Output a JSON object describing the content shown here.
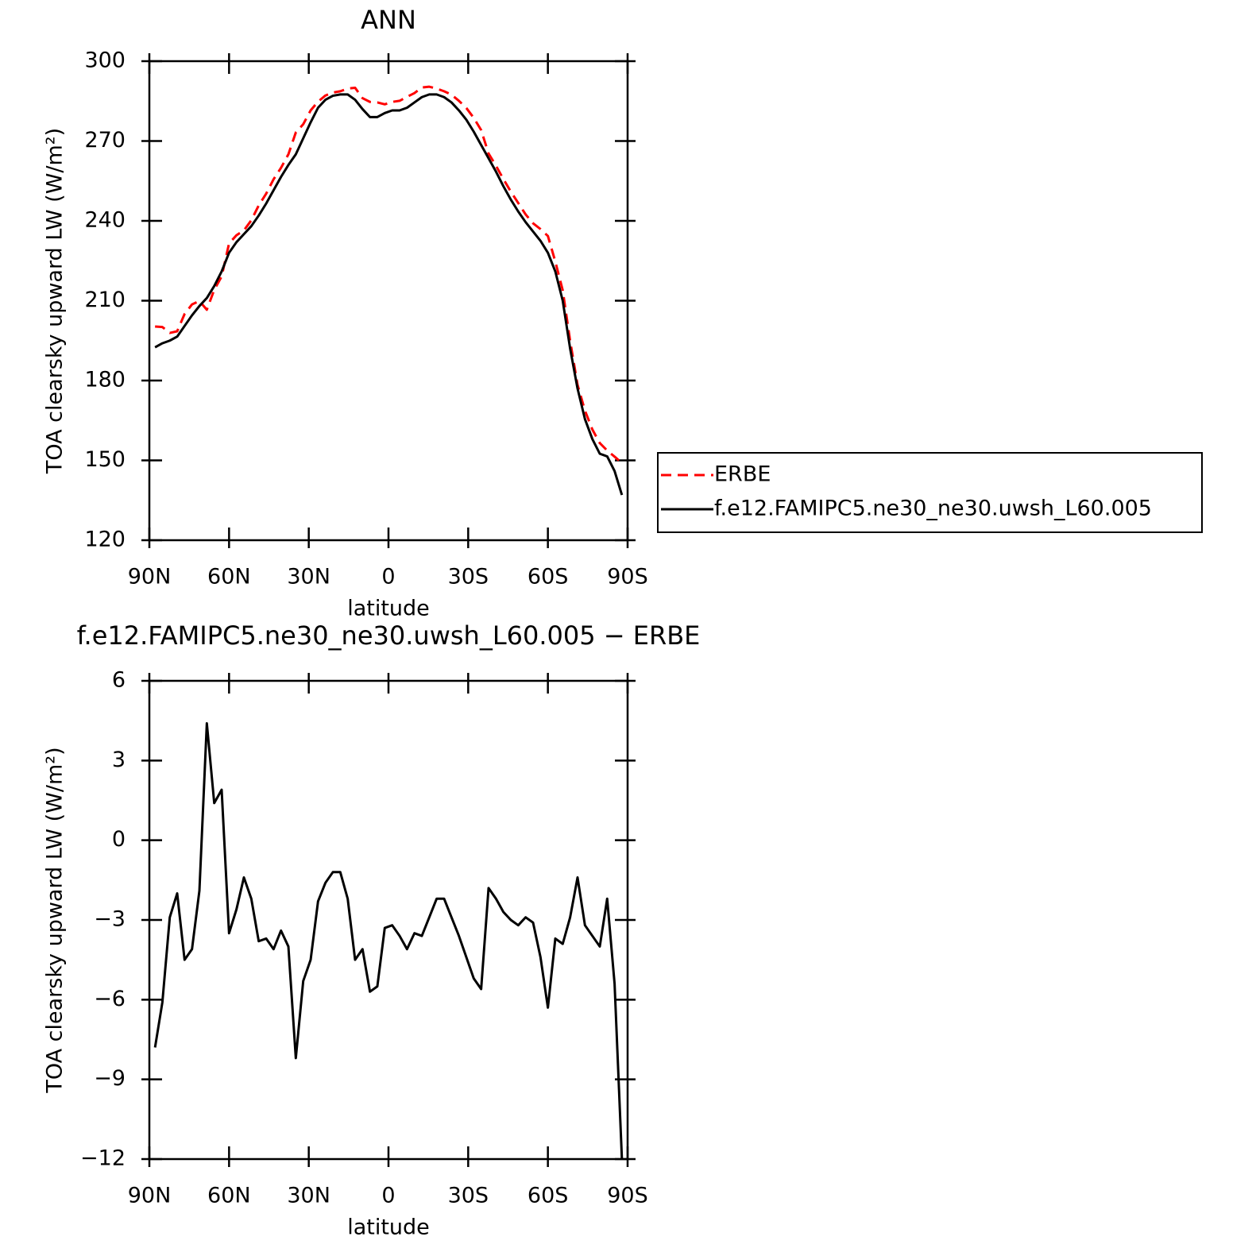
{
  "chart_data": [
    {
      "type": "line",
      "title": "ANN",
      "xlabel": "latitude",
      "ylabel": "TOA clearsky upward LW (W/m²)",
      "x": [
        87.86,
        85.1,
        82.31,
        79.53,
        76.74,
        73.95,
        71.16,
        68.37,
        65.58,
        62.79,
        60.0,
        57.21,
        54.42,
        51.63,
        48.84,
        46.04,
        43.25,
        40.46,
        37.67,
        34.88,
        32.09,
        29.3,
        26.51,
        23.72,
        20.93,
        18.14,
        15.35,
        12.56,
        9.77,
        6.98,
        4.19,
        1.4,
        -1.4,
        -4.19,
        -6.98,
        -9.77,
        -12.56,
        -15.35,
        -18.14,
        -20.93,
        -23.72,
        -26.51,
        -29.3,
        -32.09,
        -34.88,
        -37.67,
        -40.46,
        -43.25,
        -46.04,
        -48.84,
        -51.63,
        -54.42,
        -57.21,
        -60.0,
        -62.79,
        -65.58,
        -68.37,
        -71.16,
        -73.95,
        -76.74,
        -79.53,
        -82.31,
        -85.1,
        -87.86
      ],
      "series": [
        {
          "name": "ERBE",
          "color": "#ff0000",
          "dashed": true,
          "values": [
            200.3,
            200.1,
            197.9,
            198.5,
            205.0,
            208.6,
            209.9,
            206.6,
            214.1,
            219.1,
            231.5,
            234.6,
            236.4,
            240.2,
            245.8,
            250.2,
            255.6,
            259.9,
            265.0,
            273.2,
            276.3,
            281.5,
            284.8,
            287.1,
            288.2,
            288.7,
            289.7,
            290.0,
            286.1,
            284.7,
            284.5,
            283.8,
            284.7,
            285.1,
            286.6,
            288.0,
            290.1,
            290.4,
            289.7,
            288.7,
            287.4,
            285.1,
            282.4,
            278.7,
            274.1,
            265.3,
            260.7,
            255.7,
            251.0,
            246.7,
            242.4,
            239.1,
            236.9,
            234.3,
            224.7,
            213.9,
            194.9,
            178.4,
            168.7,
            161.6,
            156.5,
            153.7,
            151.4,
            149.0
          ]
        },
        {
          "name": "f.e12.FAMIPC5.ne30_ne30.uwsh_L60.005",
          "color": "#000000",
          "dashed": false,
          "values": [
            192.5,
            194,
            195,
            196.5,
            200.5,
            204.5,
            208,
            211,
            215.5,
            221,
            228,
            232,
            235,
            238,
            242,
            246.5,
            251.5,
            256.5,
            261,
            265,
            271,
            277,
            282.5,
            285.5,
            287,
            287.5,
            287.5,
            285.5,
            282,
            279,
            279,
            280.5,
            281.5,
            281.5,
            282.5,
            284.5,
            286.5,
            287.5,
            287.5,
            286.5,
            284.5,
            281.5,
            278,
            273.5,
            268.5,
            263.5,
            258.5,
            253,
            248,
            243.5,
            239.5,
            236,
            232.5,
            228,
            221,
            210,
            192,
            177,
            165.5,
            158,
            152.5,
            151.5,
            146,
            137
          ]
        }
      ],
      "xlim": [
        90,
        -90
      ],
      "xticks": [
        {
          "value": 90,
          "label": "90N"
        },
        {
          "value": 60,
          "label": "60N"
        },
        {
          "value": 30,
          "label": "30N"
        },
        0,
        {
          "value": -30,
          "label": "30S"
        },
        {
          "value": -60,
          "label": "60S"
        },
        {
          "value": -90,
          "label": "90S"
        }
      ],
      "ylim": [
        120,
        300
      ],
      "yticks": [
        120,
        150,
        180,
        210,
        240,
        270,
        300
      ],
      "legend": "right"
    },
    {
      "type": "line",
      "title": "f.e12.FAMIPC5.ne30_ne30.uwsh_L60.005 − ERBE",
      "xlabel": "latitude",
      "ylabel": "TOA clearsky upward LW (W/m²)",
      "x": [
        87.86,
        85.1,
        82.31,
        79.53,
        76.74,
        73.95,
        71.16,
        68.37,
        65.58,
        62.79,
        60.0,
        57.21,
        54.42,
        51.63,
        48.84,
        46.04,
        43.25,
        40.46,
        37.67,
        34.88,
        32.09,
        29.3,
        26.51,
        23.72,
        20.93,
        18.14,
        15.35,
        12.56,
        9.77,
        6.98,
        4.19,
        1.4,
        -1.4,
        -4.19,
        -6.98,
        -9.77,
        -12.56,
        -15.35,
        -18.14,
        -20.93,
        -23.72,
        -26.51,
        -29.3,
        -32.09,
        -34.88,
        -37.67,
        -40.46,
        -43.25,
        -46.04,
        -48.84,
        -51.63,
        -54.42,
        -57.21,
        -60.0,
        -62.79,
        -65.58,
        -68.37,
        -71.16,
        -73.95,
        -76.74,
        -79.53,
        -82.31,
        -85.1,
        -87.86
      ],
      "series": [
        {
          "color": "#000000",
          "dashed": false,
          "values": [
            -7.8,
            -6.1,
            -2.9,
            -2.0,
            -4.5,
            -4.1,
            -1.9,
            4.4,
            1.4,
            1.9,
            -3.5,
            -2.6,
            -1.4,
            -2.2,
            -3.8,
            -3.7,
            -4.1,
            -3.4,
            -4.0,
            -8.2,
            -5.3,
            -4.5,
            -2.3,
            -1.6,
            -1.2,
            -1.2,
            -2.2,
            -4.5,
            -4.1,
            -5.7,
            -5.5,
            -3.3,
            -3.2,
            -3.6,
            -4.1,
            -3.5,
            -3.6,
            -2.9,
            -2.2,
            -2.2,
            -2.9,
            -3.6,
            -4.4,
            -5.2,
            -5.6,
            -1.8,
            -2.2,
            -2.7,
            -3.0,
            -3.2,
            -2.9,
            -3.1,
            -4.4,
            -6.3,
            -3.7,
            -3.9,
            -2.9,
            -1.4,
            -3.2,
            -3.6,
            -4.0,
            -2.2,
            -5.4,
            -12.0
          ]
        }
      ],
      "xlim": [
        90,
        -90
      ],
      "xticks": [
        {
          "value": 90,
          "label": "90N"
        },
        {
          "value": 60,
          "label": "60N"
        },
        {
          "value": 30,
          "label": "30N"
        },
        0,
        {
          "value": -30,
          "label": "30S"
        },
        {
          "value": -60,
          "label": "60S"
        },
        {
          "value": -90,
          "label": "90S"
        }
      ],
      "ylim": [
        -12,
        6
      ],
      "yticks": [
        {
          "value": -12,
          "label": "−12"
        },
        {
          "value": -9,
          "label": "−9"
        },
        {
          "value": -6,
          "label": "−6"
        },
        {
          "value": -3,
          "label": "−3"
        },
        0,
        3,
        6
      ]
    }
  ]
}
